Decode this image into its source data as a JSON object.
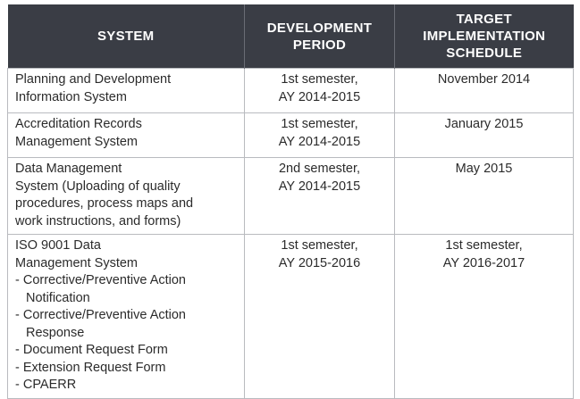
{
  "headers": [
    "SYSTEM",
    "DEVELOPMENT PERIOD",
    "TARGET IMPLEMENTATION SCHEDULE"
  ],
  "rows": [
    {
      "system": [
        "Planning and Development",
        "Information System"
      ],
      "period": [
        "1st semester,",
        "AY 2014-2015"
      ],
      "target": [
        "November 2014"
      ]
    },
    {
      "system": [
        "Accreditation Records",
        "Management System"
      ],
      "period": [
        "1st semester,",
        "AY 2014-2015"
      ],
      "target": [
        "January 2015"
      ]
    },
    {
      "system": [
        "Data Management",
        "System (Uploading of quality",
        "procedures, process maps and",
        "work instructions, and forms)"
      ],
      "period": [
        "2nd semester,",
        "AY 2014-2015"
      ],
      "target": [
        "May 2015"
      ]
    },
    {
      "system": [
        "ISO 9001 Data",
        "Management System",
        "- Corrective/Preventive Action",
        "Notification",
        "- Corrective/Preventive Action",
        "Response",
        "- Document Request Form",
        "- Extension Request Form",
        "- CPAERR"
      ],
      "period": [
        "1st semester,",
        "AY 2015-2016"
      ],
      "target": [
        "1st semester,",
        "AY 2016-2017"
      ]
    }
  ]
}
